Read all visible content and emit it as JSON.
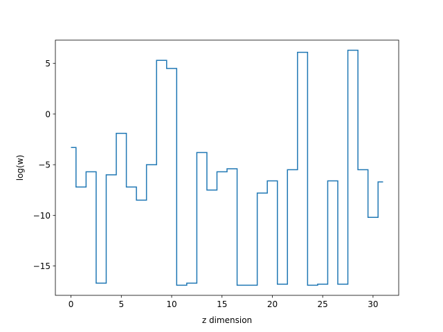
{
  "chart_data": {
    "type": "line",
    "drawstyle": "steps-mid",
    "title": "",
    "xlabel": "z dimension",
    "ylabel": "log(w)",
    "xlim": [
      -1.55,
      32.55
    ],
    "ylim": [
      -17.9,
      7.3
    ],
    "xticks": [
      0,
      5,
      10,
      15,
      20,
      25,
      30
    ],
    "xtick_labels": [
      "0",
      "5",
      "10",
      "15",
      "20",
      "25",
      "30"
    ],
    "yticks": [
      -15,
      -10,
      -5,
      0,
      5
    ],
    "ytick_labels": [
      "−15",
      "−10",
      "−5",
      "0",
      "5"
    ],
    "grid": false,
    "legend": "none",
    "series": [
      {
        "color": "#1f77b4",
        "x": [
          0,
          1,
          2,
          3,
          4,
          5,
          6,
          7,
          8,
          9,
          10,
          11,
          12,
          13,
          14,
          15,
          16,
          17,
          18,
          19,
          20,
          21,
          22,
          23,
          24,
          25,
          26,
          27,
          28,
          29,
          30,
          31
        ],
        "y": [
          -3.3,
          -7.2,
          -5.7,
          -16.7,
          -6.0,
          -1.9,
          -7.2,
          -8.5,
          -5.0,
          5.3,
          4.5,
          -16.9,
          -16.7,
          -3.8,
          -7.5,
          -5.7,
          -5.4,
          -16.9,
          -16.9,
          -7.8,
          -6.6,
          -16.8,
          -5.5,
          6.1,
          -16.9,
          -16.8,
          -6.6,
          -16.8,
          6.3,
          -5.5,
          -10.2,
          -6.7
        ]
      }
    ]
  }
}
